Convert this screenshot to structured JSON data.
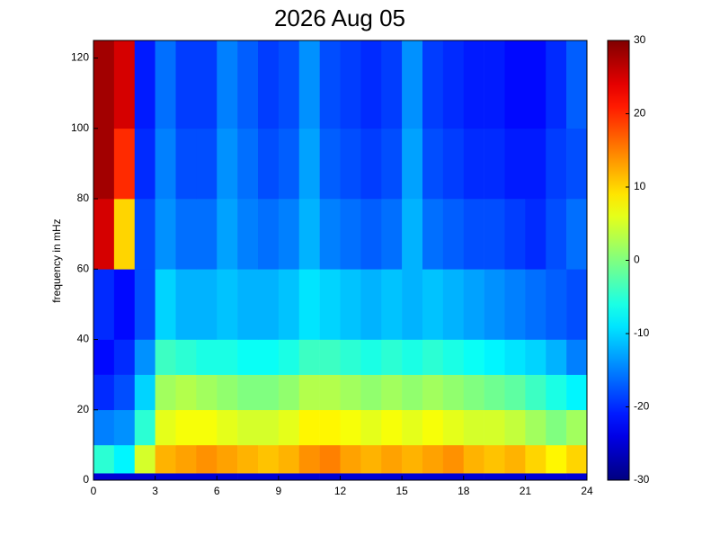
{
  "chart_data": {
    "type": "heatmap",
    "title": "2026 Aug 05",
    "y_label": "frequency in mHz",
    "x_edges": [
      0,
      1,
      2,
      3,
      4,
      5,
      6,
      7,
      8,
      9,
      10,
      11,
      12,
      13,
      14,
      15,
      16,
      17,
      18,
      19,
      20,
      21,
      22,
      23,
      24
    ],
    "y_edges": [
      0,
      2,
      10,
      20,
      30,
      40,
      60,
      80,
      100,
      125
    ],
    "z": [
      [
        -25,
        -25,
        -25,
        -25,
        -25,
        -25,
        -25,
        -25,
        -25,
        -25,
        -25,
        -25,
        -25,
        -25,
        -25,
        -25,
        -25,
        -25,
        -25,
        -25,
        -25,
        -25,
        -25,
        -25
      ],
      [
        -5,
        -8,
        5,
        12,
        13,
        14,
        13,
        12,
        11,
        12,
        14,
        15,
        13,
        12,
        13,
        12,
        13,
        14,
        12,
        11,
        12,
        10,
        8,
        10
      ],
      [
        -15,
        -14,
        -5,
        6,
        7,
        7,
        6,
        5,
        5,
        6,
        8,
        8,
        7,
        6,
        7,
        6,
        7,
        6,
        5,
        5,
        4,
        2,
        0,
        2
      ],
      [
        -20,
        -18,
        -10,
        2,
        3,
        2,
        1,
        0,
        0,
        1,
        3,
        3,
        2,
        1,
        2,
        1,
        2,
        1,
        0,
        -1,
        -2,
        -4,
        -6,
        -8
      ],
      [
        -22,
        -20,
        -14,
        -4,
        -5,
        -6,
        -6,
        -7,
        -7,
        -6,
        -4,
        -4,
        -5,
        -6,
        -5,
        -6,
        -5,
        -6,
        -7,
        -8,
        -9,
        -10,
        -12,
        -15
      ],
      [
        -20,
        -22,
        -18,
        -10,
        -12,
        -12,
        -11,
        -12,
        -12,
        -11,
        -9,
        -10,
        -11,
        -12,
        -11,
        -12,
        -11,
        -12,
        -13,
        -14,
        -15,
        -16,
        -17,
        -18
      ],
      [
        25,
        10,
        -18,
        -14,
        -16,
        -16,
        -13,
        -15,
        -16,
        -15,
        -12,
        -15,
        -16,
        -17,
        -16,
        -12,
        -16,
        -17,
        -18,
        -18,
        -19,
        -20,
        -18,
        -16
      ],
      [
        28,
        20,
        -20,
        -15,
        -18,
        -18,
        -14,
        -16,
        -18,
        -17,
        -13,
        -17,
        -18,
        -19,
        -18,
        -13,
        -18,
        -19,
        -20,
        -20,
        -21,
        -21,
        -19,
        -18
      ],
      [
        28,
        25,
        -21,
        -16,
        -19,
        -19,
        -15,
        -17,
        -19,
        -18,
        -14,
        -18,
        -19,
        -20,
        -19,
        -14,
        -19,
        -20,
        -21,
        -21,
        -22,
        -22,
        -20,
        -17
      ]
    ],
    "xlim": [
      0,
      24
    ],
    "xticks": [
      0,
      3,
      6,
      9,
      12,
      15,
      18,
      21,
      24
    ],
    "ylim": [
      0,
      125
    ],
    "yticks": [
      0,
      20,
      40,
      60,
      80,
      100,
      120
    ],
    "clim": [
      -30,
      30
    ],
    "cticks": [
      -30,
      -20,
      -10,
      0,
      10,
      20,
      30
    ],
    "colormap": "jet"
  }
}
